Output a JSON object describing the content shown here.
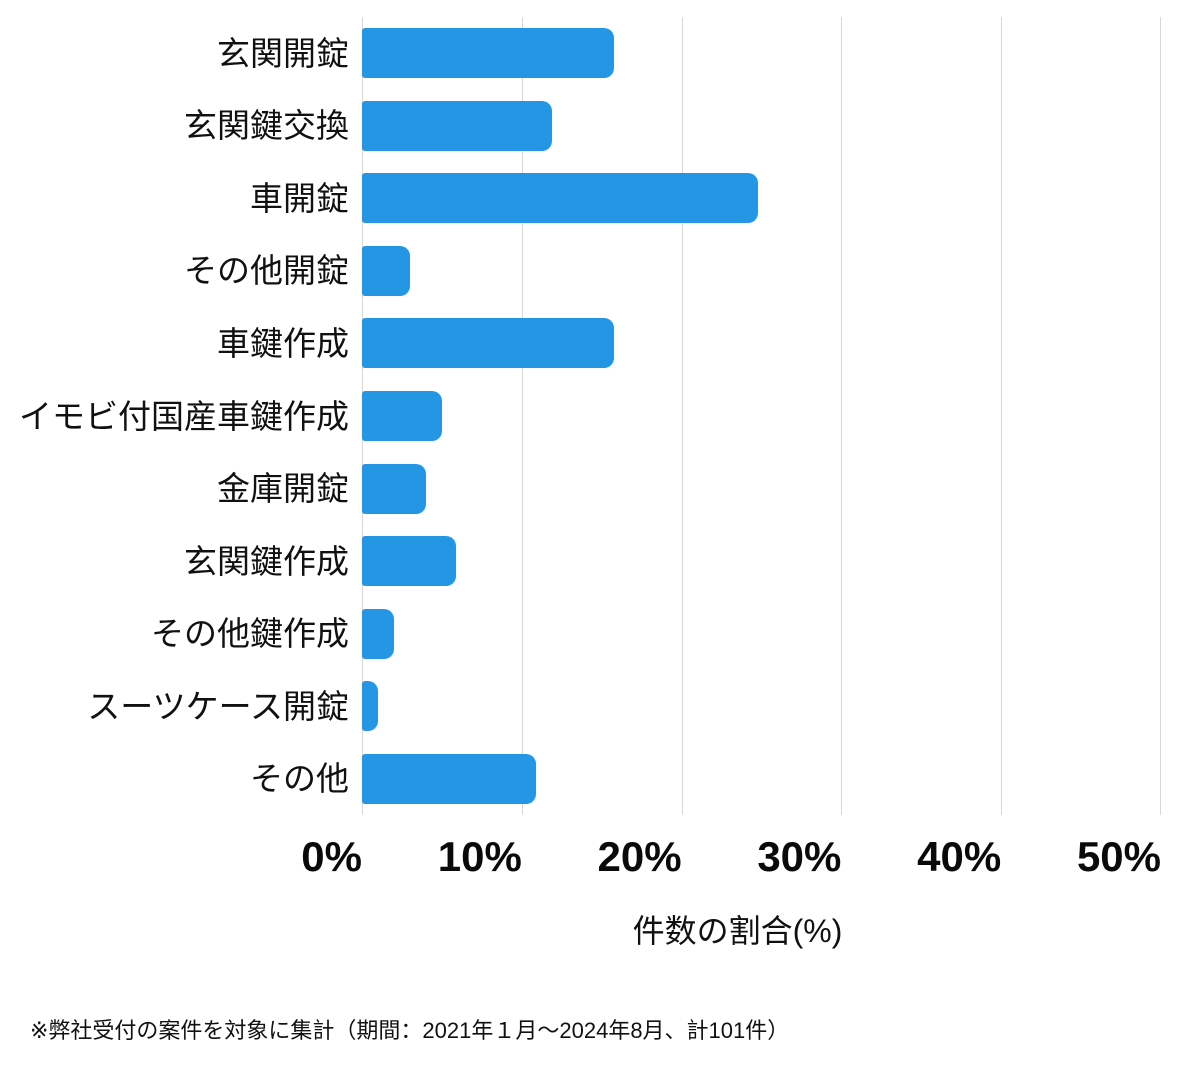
{
  "chart_data": {
    "type": "bar",
    "orientation": "horizontal",
    "categories": [
      "玄関開錠",
      "玄関鍵交換",
      "車開錠",
      "その他開錠",
      "車鍵作成",
      "イモビ付国産車鍵作成",
      "金庫開錠",
      "玄関鍵作成",
      "その他鍵作成",
      "スーツケース開錠",
      "その他"
    ],
    "values": [
      15.8,
      11.9,
      24.8,
      3.0,
      15.8,
      5.0,
      4.0,
      5.9,
      2.0,
      1.0,
      10.9
    ],
    "xlabel": "件数の割合(%)",
    "xlim": [
      0,
      50
    ],
    "x_ticks": [
      "0%",
      "10%",
      "20%",
      "30%",
      "40%",
      "50%"
    ],
    "grid": true,
    "legend": false,
    "bar_color": "#2596e3",
    "gridline_color": "#d7d7d7"
  },
  "footnote": "※弊社受付の案件を対象に集計（期間：2021年１月～2024年8月、計101件）"
}
